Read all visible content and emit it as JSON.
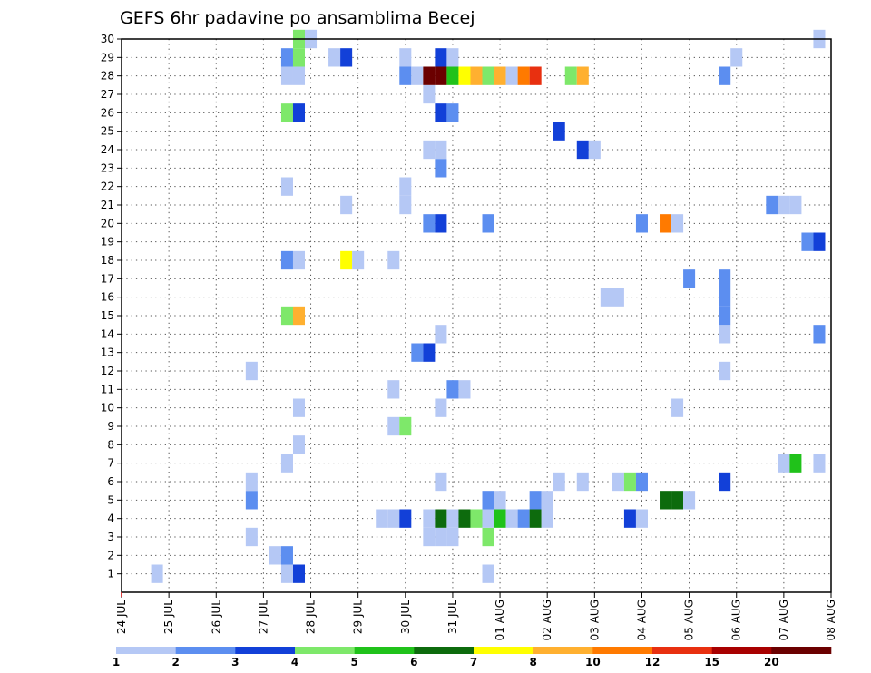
{
  "chart_data": {
    "type": "heatmap",
    "title": "GEFS 6hr padavine po ansamblima Becej",
    "xlabel": "",
    "ylabel": "",
    "x_tick_labels": [
      "24 JUL",
      "25 JUL",
      "26 JUL",
      "27 JUL",
      "28 JUL",
      "29 JUL",
      "30 JUL",
      "31 JUL",
      "01 AUG",
      "02 AUG",
      "03 AUG",
      "04 AUG",
      "05 AUG",
      "06 AUG",
      "07 AUG",
      "08 AUG"
    ],
    "xlim_days": [
      0,
      15
    ],
    "step_days": 0.25,
    "y_tick_labels": [
      "1",
      "2",
      "3",
      "4",
      "5",
      "6",
      "7",
      "8",
      "9",
      "10",
      "11",
      "12",
      "13",
      "14",
      "15",
      "16",
      "17",
      "18",
      "19",
      "20",
      "21",
      "22",
      "23",
      "24",
      "25",
      "26",
      "27",
      "28",
      "29",
      "30"
    ],
    "ylim": [
      0,
      30
    ],
    "grid": true,
    "colorbar": {
      "position": "bottom",
      "levels": [
        "1",
        "2",
        "3",
        "4",
        "5",
        "6",
        "7",
        "8",
        "10",
        "12",
        "15",
        "20"
      ],
      "colors": [
        "#b5c8f5",
        "#5c8ef0",
        "#1240d8",
        "#7ee86a",
        "#20c21a",
        "#0d6b0d",
        "#ffff00",
        "#ffb030",
        "#ff7a00",
        "#e83010",
        "#a80000",
        "#6b0000"
      ]
    },
    "cells": [
      [
        0.75,
        1,
        1
      ],
      [
        3.75,
        1,
        3
      ],
      [
        3.5,
        1,
        1
      ],
      [
        7.75,
        1,
        1
      ],
      [
        3.25,
        2,
        1
      ],
      [
        3.5,
        2,
        2
      ],
      [
        2.75,
        3,
        1
      ],
      [
        6.5,
        3,
        1
      ],
      [
        6.75,
        3,
        1
      ],
      [
        7.0,
        3,
        1
      ],
      [
        7.75,
        3,
        4
      ],
      [
        5.5,
        4,
        1
      ],
      [
        5.75,
        4,
        1
      ],
      [
        6.0,
        4,
        3
      ],
      [
        6.5,
        4,
        1
      ],
      [
        6.75,
        4,
        6
      ],
      [
        7.0,
        4,
        1
      ],
      [
        7.25,
        4,
        6
      ],
      [
        7.5,
        4,
        4
      ],
      [
        7.75,
        4,
        1
      ],
      [
        8.0,
        4,
        5
      ],
      [
        8.25,
        4,
        1
      ],
      [
        8.5,
        4,
        2
      ],
      [
        8.75,
        4,
        6
      ],
      [
        9.0,
        4,
        1
      ],
      [
        10.75,
        4,
        3
      ],
      [
        11.0,
        4,
        1
      ],
      [
        2.75,
        5,
        2
      ],
      [
        7.75,
        5,
        2
      ],
      [
        8.0,
        5,
        1
      ],
      [
        8.75,
        5,
        2
      ],
      [
        9.0,
        5,
        1
      ],
      [
        11.5,
        5,
        6
      ],
      [
        11.75,
        5,
        6
      ],
      [
        12.0,
        5,
        1
      ],
      [
        2.75,
        6,
        1
      ],
      [
        6.75,
        6,
        1
      ],
      [
        9.25,
        6,
        1
      ],
      [
        9.75,
        6,
        1
      ],
      [
        10.5,
        6,
        1
      ],
      [
        10.75,
        6,
        4
      ],
      [
        11.0,
        6,
        2
      ],
      [
        12.75,
        6,
        3
      ],
      [
        3.5,
        7,
        1
      ],
      [
        14.0,
        7,
        1
      ],
      [
        14.25,
        7,
        5
      ],
      [
        14.75,
        7,
        1
      ],
      [
        3.75,
        8,
        1
      ],
      [
        5.75,
        9,
        1
      ],
      [
        6.0,
        9,
        4
      ],
      [
        3.75,
        10,
        1
      ],
      [
        6.75,
        10,
        1
      ],
      [
        11.75,
        10,
        1
      ],
      [
        5.75,
        11,
        1
      ],
      [
        7.0,
        11,
        2
      ],
      [
        7.25,
        11,
        1
      ],
      [
        2.75,
        12,
        1
      ],
      [
        12.75,
        12,
        1
      ],
      [
        6.25,
        13,
        2
      ],
      [
        6.5,
        13,
        3
      ],
      [
        6.75,
        14,
        1
      ],
      [
        12.75,
        14,
        1
      ],
      [
        14.75,
        14,
        2
      ],
      [
        3.5,
        15,
        4
      ],
      [
        3.75,
        15,
        8
      ],
      [
        12.75,
        15,
        2
      ],
      [
        12.75,
        16,
        2
      ],
      [
        10.25,
        16,
        1
      ],
      [
        10.5,
        16,
        1
      ],
      [
        12.0,
        17,
        2
      ],
      [
        12.75,
        17,
        2
      ],
      [
        3.5,
        18,
        2
      ],
      [
        3.75,
        18,
        1
      ],
      [
        4.75,
        18,
        7
      ],
      [
        5.0,
        18,
        1
      ],
      [
        5.75,
        18,
        1
      ],
      [
        14.5,
        19,
        2
      ],
      [
        14.75,
        19,
        3
      ],
      [
        6.5,
        20,
        2
      ],
      [
        6.75,
        20,
        3
      ],
      [
        7.75,
        20,
        2
      ],
      [
        11.0,
        20,
        2
      ],
      [
        11.5,
        20,
        9
      ],
      [
        11.75,
        20,
        1
      ],
      [
        4.75,
        21,
        1
      ],
      [
        6.0,
        21,
        1
      ],
      [
        13.75,
        21,
        2
      ],
      [
        14.0,
        21,
        1
      ],
      [
        14.25,
        21,
        1
      ],
      [
        3.5,
        22,
        1
      ],
      [
        6.0,
        22,
        1
      ],
      [
        6.75,
        23,
        2
      ],
      [
        6.5,
        24,
        1
      ],
      [
        6.75,
        24,
        1
      ],
      [
        9.75,
        24,
        3
      ],
      [
        10.0,
        24,
        1
      ],
      [
        9.25,
        25,
        3
      ],
      [
        3.5,
        26,
        4
      ],
      [
        3.75,
        26,
        3
      ],
      [
        6.75,
        26,
        3
      ],
      [
        7.0,
        26,
        2
      ],
      [
        6.5,
        27,
        1
      ],
      [
        3.5,
        28,
        1
      ],
      [
        3.75,
        28,
        1
      ],
      [
        6.0,
        28,
        2
      ],
      [
        6.25,
        28,
        1
      ],
      [
        6.5,
        28,
        12
      ],
      [
        6.75,
        28,
        12
      ],
      [
        7.0,
        28,
        5
      ],
      [
        7.25,
        28,
        7
      ],
      [
        7.5,
        28,
        8
      ],
      [
        7.75,
        28,
        4
      ],
      [
        8.0,
        28,
        8
      ],
      [
        8.25,
        28,
        1
      ],
      [
        8.5,
        28,
        9
      ],
      [
        8.75,
        28,
        10
      ],
      [
        9.5,
        28,
        4
      ],
      [
        9.75,
        28,
        8
      ],
      [
        12.75,
        28,
        2
      ],
      [
        3.5,
        29,
        2
      ],
      [
        3.75,
        29,
        4
      ],
      [
        4.5,
        29,
        1
      ],
      [
        4.75,
        29,
        3
      ],
      [
        6.0,
        29,
        1
      ],
      [
        6.75,
        29,
        3
      ],
      [
        7.0,
        29,
        1
      ],
      [
        13.0,
        29,
        1
      ],
      [
        3.75,
        30,
        4
      ],
      [
        4.0,
        30,
        1
      ],
      [
        14.75,
        30,
        1
      ]
    ]
  }
}
